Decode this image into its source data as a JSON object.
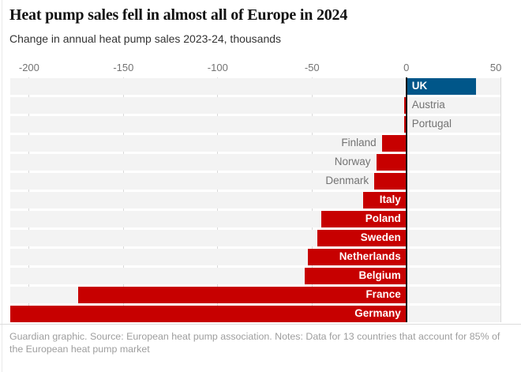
{
  "header": {
    "title": "Heat pump sales fell in almost all of Europe in 2024",
    "subtitle": "Change in annual heat pump sales 2023-24, thousands"
  },
  "chart_data": {
    "type": "bar",
    "orientation": "horizontal",
    "title": "Heat pump sales fell in almost all of Europe in 2024",
    "subtitle": "Change in annual heat pump sales 2023-24, thousands",
    "unit": "thousands",
    "categories": [
      "UK",
      "Austria",
      "Portugal",
      "Finland",
      "Norway",
      "Denmark",
      "Italy",
      "Poland",
      "Sweden",
      "Netherlands",
      "Belgium",
      "France",
      "Germany"
    ],
    "values": [
      37,
      -1,
      -1,
      -13,
      -16,
      -17,
      -23,
      -45,
      -47,
      -52,
      -54,
      -174,
      -210
    ],
    "xlim": [
      -210,
      50
    ],
    "ticks": [
      -200,
      -150,
      -100,
      -50,
      0,
      50
    ],
    "tick_labels": [
      "-200",
      "-150",
      "-100",
      "-50",
      "0",
      "50"
    ],
    "grid": true,
    "legend": "none",
    "positive_color": "#005689",
    "negative_color": "#c70000",
    "row_band_color": "#f3f3f3",
    "zero_axis_color": "#121212"
  },
  "footer": {
    "lines": [
      "Guardian graphic. Source: European heat pump association. Notes: Data for 13 countries that account for 85% of",
      "the European heat pump market"
    ]
  }
}
